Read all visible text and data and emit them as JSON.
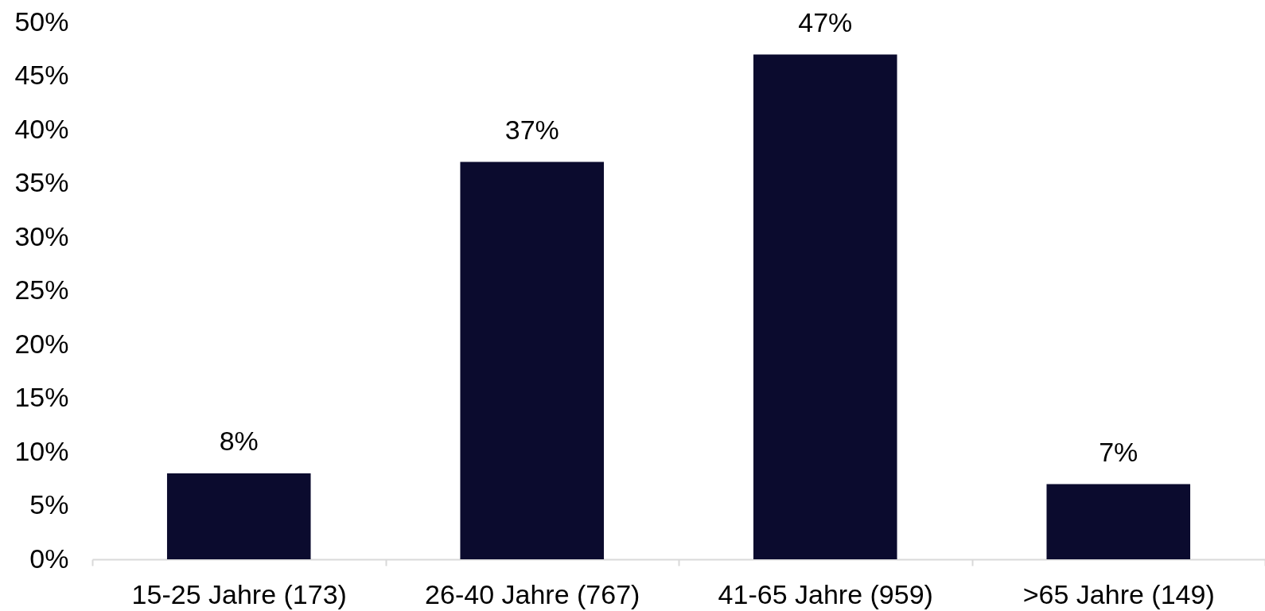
{
  "chart_data": {
    "type": "bar",
    "categories": [
      "15-25 Jahre (173)",
      "26-40 Jahre (767)",
      "41-65 Jahre (959)",
      ">65 Jahre (149)"
    ],
    "values": [
      8,
      37,
      47,
      7
    ],
    "color": "#0b0b2e",
    "value_labels": [
      "8%",
      "37%",
      "47%",
      "7%"
    ],
    "ylim": [
      0,
      50
    ],
    "yticks": [
      {
        "value": 0,
        "label": "0%"
      },
      {
        "value": 5,
        "label": "5%"
      },
      {
        "value": 10,
        "label": "10%"
      },
      {
        "value": 15,
        "label": "15%"
      },
      {
        "value": 20,
        "label": "20%"
      },
      {
        "value": 25,
        "label": "25%"
      },
      {
        "value": 30,
        "label": "30%"
      },
      {
        "value": 35,
        "label": "35%"
      },
      {
        "value": 40,
        "label": "40%"
      },
      {
        "value": 45,
        "label": "45%"
      },
      {
        "value": 50,
        "label": "50%"
      }
    ]
  }
}
